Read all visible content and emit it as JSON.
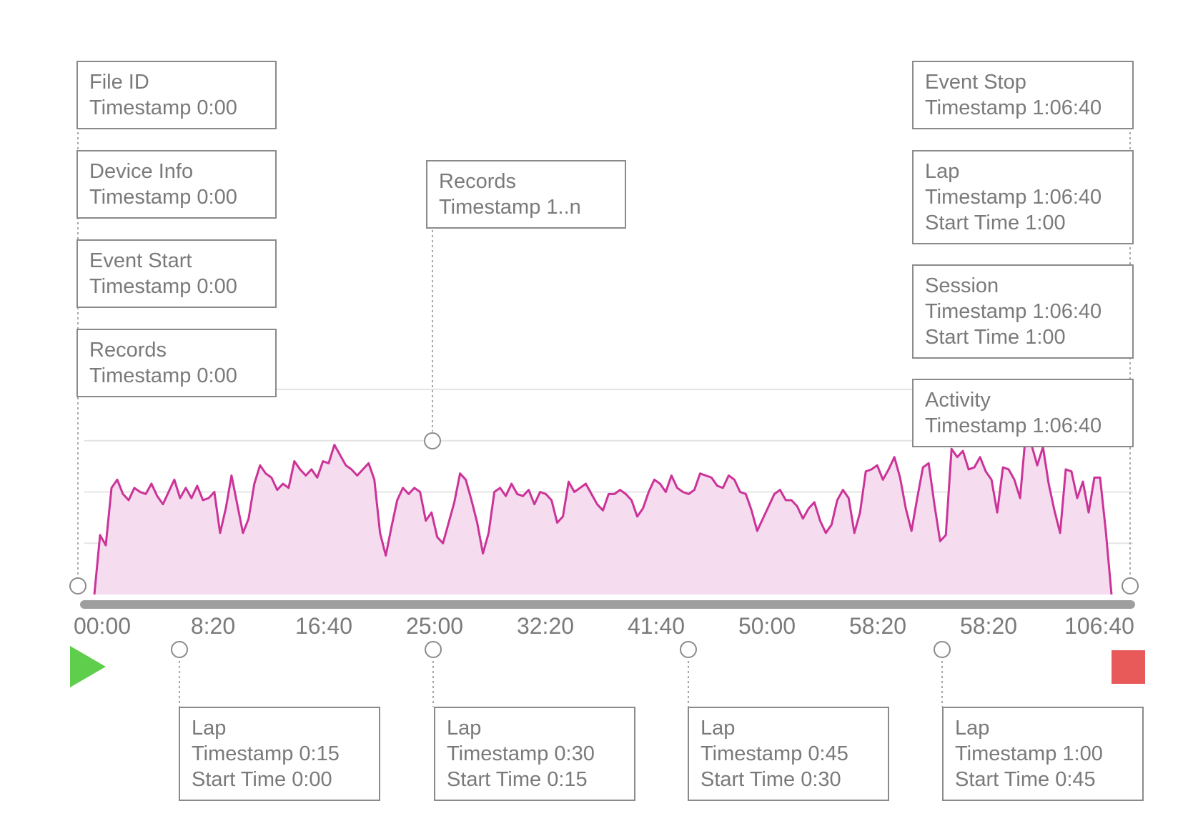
{
  "colors": {
    "line": "#cc3399",
    "fill": "#f5dcee",
    "connector": "#8a8a8a",
    "play": "#5fce4c",
    "stop": "#e85a5a"
  },
  "icons": {
    "start": "play-triangle-icon",
    "end": "stop-square-icon"
  },
  "chart_data": {
    "type": "area",
    "title": "",
    "xlabel": "",
    "ylabel": "",
    "x_ticks": [
      "00:00",
      "8:20",
      "16:40",
      "25:00",
      "32:20",
      "41:40",
      "50:00",
      "58:20",
      "58:20",
      "106:40"
    ],
    "grid": true,
    "y_gridlines": 4,
    "series": [
      {
        "values": [
          0,
          0.29,
          0.24,
          0.52,
          0.56,
          0.49,
          0.46,
          0.52,
          0.5,
          0.49,
          0.54,
          0.48,
          0.44,
          0.5,
          0.56,
          0.47,
          0.52,
          0.47,
          0.53,
          0.46,
          0.47,
          0.5,
          0.3,
          0.42,
          0.58,
          0.44,
          0.3,
          0.37,
          0.54,
          0.63,
          0.59,
          0.57,
          0.51,
          0.54,
          0.52,
          0.65,
          0.61,
          0.58,
          0.61,
          0.57,
          0.65,
          0.64,
          0.73,
          0.68,
          0.63,
          0.61,
          0.58,
          0.61,
          0.64,
          0.56,
          0.3,
          0.19,
          0.33,
          0.46,
          0.52,
          0.49,
          0.52,
          0.5,
          0.36,
          0.4,
          0.28,
          0.25,
          0.35,
          0.45,
          0.59,
          0.56,
          0.46,
          0.35,
          0.2,
          0.3,
          0.5,
          0.52,
          0.48,
          0.54,
          0.49,
          0.48,
          0.51,
          0.44,
          0.5,
          0.49,
          0.46,
          0.35,
          0.38,
          0.55,
          0.5,
          0.52,
          0.54,
          0.49,
          0.44,
          0.41,
          0.49,
          0.49,
          0.51,
          0.49,
          0.46,
          0.38,
          0.42,
          0.5,
          0.56,
          0.54,
          0.5,
          0.58,
          0.52,
          0.5,
          0.49,
          0.51,
          0.59,
          0.58,
          0.57,
          0.53,
          0.52,
          0.58,
          0.56,
          0.5,
          0.49,
          0.41,
          0.31,
          0.37,
          0.43,
          0.49,
          0.51,
          0.46,
          0.46,
          0.43,
          0.37,
          0.42,
          0.45,
          0.36,
          0.3,
          0.34,
          0.46,
          0.51,
          0.47,
          0.3,
          0.4,
          0.6,
          0.61,
          0.63,
          0.56,
          0.61,
          0.67,
          0.57,
          0.42,
          0.31,
          0.47,
          0.62,
          0.64,
          0.44,
          0.26,
          0.29,
          0.71,
          0.67,
          0.7,
          0.61,
          0.62,
          0.67,
          0.6,
          0.56,
          0.4,
          0.62,
          0.61,
          0.56,
          0.47,
          0.79,
          0.73,
          0.63,
          0.72,
          0.54,
          0.41,
          0.3,
          0.61,
          0.6,
          0.47,
          0.55,
          0.4,
          0.57,
          0.57,
          0.31,
          0
        ]
      }
    ],
    "annotations_top": [
      {
        "name": "File ID",
        "timestamp": "Timestamp 0:00"
      },
      {
        "name": "Device Info",
        "timestamp": "Timestamp 0:00"
      },
      {
        "name": "Event Start",
        "timestamp": "Timestamp 0:00"
      },
      {
        "name": "Records",
        "timestamp": "Timestamp 0:00"
      }
    ],
    "annotation_middle": {
      "name": "Records",
      "timestamp": "Timestamp 1..n"
    },
    "annotations_end": [
      {
        "name": "Event Stop",
        "timestamp": "Timestamp 1:06:40"
      },
      {
        "name": "Lap",
        "timestamp": "Timestamp 1:06:40",
        "start": "Start Time 1:00"
      },
      {
        "name": "Session",
        "timestamp": "Timestamp 1:06:40",
        "start": "Start Time 1:00"
      },
      {
        "name": "Activity",
        "timestamp": "Timestamp 1:06:40"
      }
    ],
    "annotations_bottom": [
      {
        "name": "Lap",
        "timestamp": "Timestamp 0:15",
        "start": "Start Time 0:00"
      },
      {
        "name": "Lap",
        "timestamp": "Timestamp 0:30",
        "start": "Start Time 0:15"
      },
      {
        "name": "Lap",
        "timestamp": "Timestamp 0:45",
        "start": "Start Time 0:30"
      },
      {
        "name": "Lap",
        "timestamp": "Timestamp 1:00",
        "start": "Start Time 0:45"
      }
    ]
  }
}
